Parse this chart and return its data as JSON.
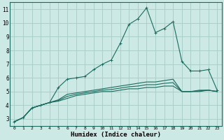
{
  "title": "",
  "xlabel": "Humidex (Indice chaleur)",
  "ylabel": "",
  "background_color": "#cce9e5",
  "grid_color": "#aacfc9",
  "line_color": "#1a6b5e",
  "xlim": [
    -0.5,
    23.5
  ],
  "ylim": [
    2.5,
    11.5
  ],
  "xticks": [
    0,
    1,
    2,
    3,
    4,
    5,
    6,
    7,
    8,
    9,
    10,
    11,
    12,
    13,
    14,
    15,
    16,
    17,
    18,
    19,
    20,
    21,
    22,
    23
  ],
  "yticks": [
    3,
    4,
    5,
    6,
    7,
    8,
    9,
    10,
    11
  ],
  "line1_x": [
    0,
    1,
    2,
    3,
    4,
    5,
    6,
    7,
    8,
    9,
    10,
    11,
    12,
    13,
    14,
    15,
    16,
    17,
    18,
    19,
    20,
    21,
    22,
    23
  ],
  "line1_y": [
    2.8,
    3.1,
    3.8,
    4.0,
    4.2,
    5.3,
    5.9,
    6.0,
    6.1,
    6.6,
    7.0,
    7.3,
    8.5,
    9.9,
    10.3,
    11.1,
    9.3,
    9.6,
    10.1,
    7.2,
    6.5,
    6.5,
    6.6,
    5.1
  ],
  "line2_x": [
    0,
    1,
    2,
    3,
    4,
    5,
    6,
    7,
    8,
    9,
    10,
    11,
    12,
    13,
    14,
    15,
    16,
    17,
    18,
    19,
    20,
    21,
    22,
    23
  ],
  "line2_y": [
    2.8,
    3.1,
    3.8,
    4.0,
    4.2,
    4.4,
    4.8,
    4.9,
    5.0,
    5.1,
    5.2,
    5.3,
    5.4,
    5.5,
    5.6,
    5.7,
    5.7,
    5.8,
    5.9,
    5.0,
    5.0,
    5.1,
    5.1,
    5.0
  ],
  "line3_x": [
    0,
    1,
    2,
    3,
    4,
    5,
    6,
    7,
    8,
    9,
    10,
    11,
    12,
    13,
    14,
    15,
    16,
    17,
    18,
    19,
    20,
    21,
    22,
    23
  ],
  "line3_y": [
    2.8,
    3.1,
    3.8,
    4.0,
    4.2,
    4.3,
    4.5,
    4.7,
    4.8,
    4.9,
    5.0,
    5.0,
    5.1,
    5.2,
    5.2,
    5.3,
    5.3,
    5.4,
    5.4,
    5.0,
    5.0,
    5.0,
    5.1,
    5.0
  ],
  "line4_x": [
    0,
    1,
    2,
    3,
    4,
    5,
    6,
    7,
    8,
    9,
    10,
    11,
    12,
    13,
    14,
    15,
    16,
    17,
    18,
    19,
    20,
    21,
    22,
    23
  ],
  "line4_y": [
    2.8,
    3.1,
    3.8,
    4.0,
    4.2,
    4.35,
    4.65,
    4.8,
    4.9,
    5.0,
    5.1,
    5.15,
    5.25,
    5.35,
    5.4,
    5.5,
    5.5,
    5.6,
    5.65,
    5.0,
    5.0,
    5.05,
    5.1,
    5.0
  ],
  "marker": "+"
}
